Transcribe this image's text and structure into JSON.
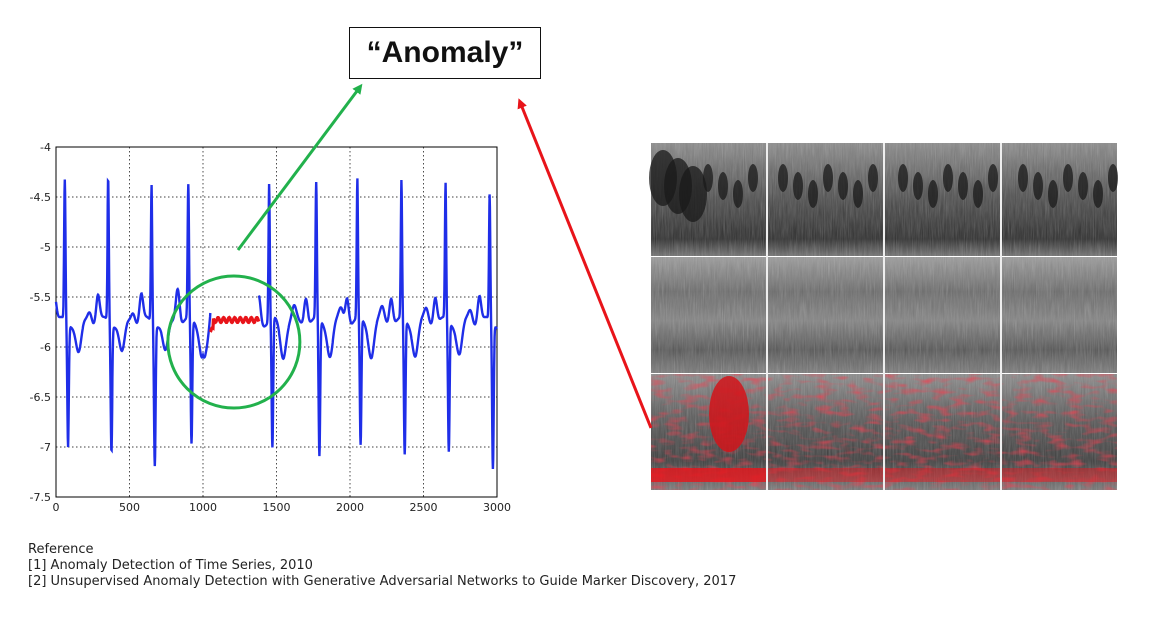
{
  "title": "“Anomaly”",
  "chart_data": {
    "type": "line",
    "title": "",
    "xlabel": "",
    "ylabel": "",
    "xlim": [
      0,
      3000
    ],
    "ylim": [
      -7.5,
      -4
    ],
    "grid": true,
    "x_ticks": [
      "0",
      "500",
      "1000",
      "1500",
      "2000",
      "2500",
      "3000"
    ],
    "y_ticks": [
      "-4",
      "-4.5",
      "-5",
      "-5.5",
      "-6",
      "-6.5",
      "-7",
      "-7.5"
    ],
    "series": [
      {
        "color": "#1f2ee8",
        "beat_period": 300,
        "baseline": -5.75,
        "spike_peak": -4.35,
        "spike_trough": -7.05
      },
      {
        "color": "#e8141a",
        "x_range": [
          1050,
          1380
        ],
        "value": -5.73
      }
    ],
    "anomaly_circle_center": [
      1210,
      -5.95
    ]
  },
  "colors": {
    "arrow_left": "#22b14c",
    "arrow_right": "#e8141a",
    "circle": "#22b14c"
  },
  "references": {
    "heading": "Reference",
    "items": [
      "[1] Anomaly Detection of Time Series, 2010",
      "[2] Unsupervised Anomaly Detection with Generative Adversarial Networks to Guide Marker Discovery, 2017"
    ]
  }
}
